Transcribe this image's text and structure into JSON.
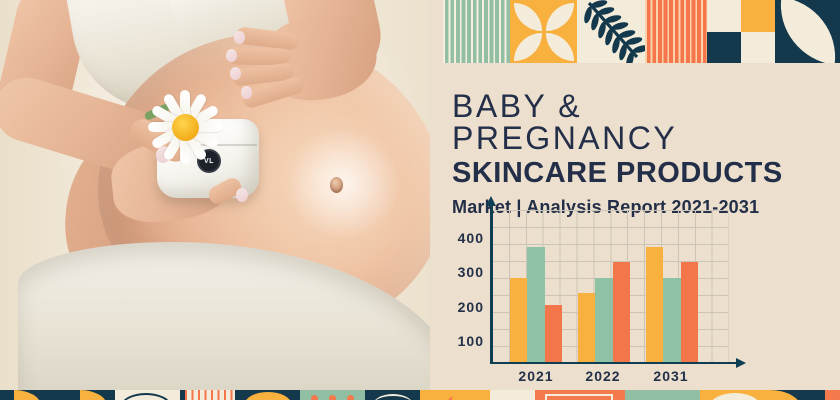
{
  "header": {
    "title_line1": "BABY & PREGNANCY",
    "title_line2": "SKINCARE PRODUCTS",
    "subtitle": "Market | Analysis Report 2021-2031"
  },
  "photo": {
    "description": "Pregnant woman cradling her belly with one hand and holding a white skincare jar topped with a daisy flower",
    "jar_logo_text": "VL"
  },
  "chart_data": {
    "type": "bar",
    "title": "",
    "xlabel": "",
    "ylabel": "",
    "categories": [
      "2021",
      "2022",
      "2031"
    ],
    "series": [
      {
        "name": "gold",
        "color": "#f8b13e",
        "values": [
          280,
          230,
          380
        ]
      },
      {
        "name": "green",
        "color": "#8fc1a4",
        "values": [
          380,
          280,
          280
        ]
      },
      {
        "name": "orange",
        "color": "#f3764a",
        "values": [
          190,
          330,
          330
        ]
      }
    ],
    "y_ticks": [
      "400",
      "300",
      "200",
      "100"
    ],
    "ylim": [
      0,
      450
    ],
    "grid": true,
    "legend_position": "none"
  },
  "decor": {
    "top_tiles": [
      "green-pinstripes",
      "yellow-petal-flower",
      "navy-leaf-branch",
      "orange-pinstripes",
      "checkerboard",
      "navy-cream-leaf"
    ],
    "colors": {
      "navy": "#14394c",
      "gold": "#f8b13e",
      "orange": "#f4794c",
      "green": "#92bfa3",
      "cream": "#f4ecdb",
      "background": "#ecdfcd",
      "text": "#232e48",
      "axis": "#0d3e52"
    }
  }
}
